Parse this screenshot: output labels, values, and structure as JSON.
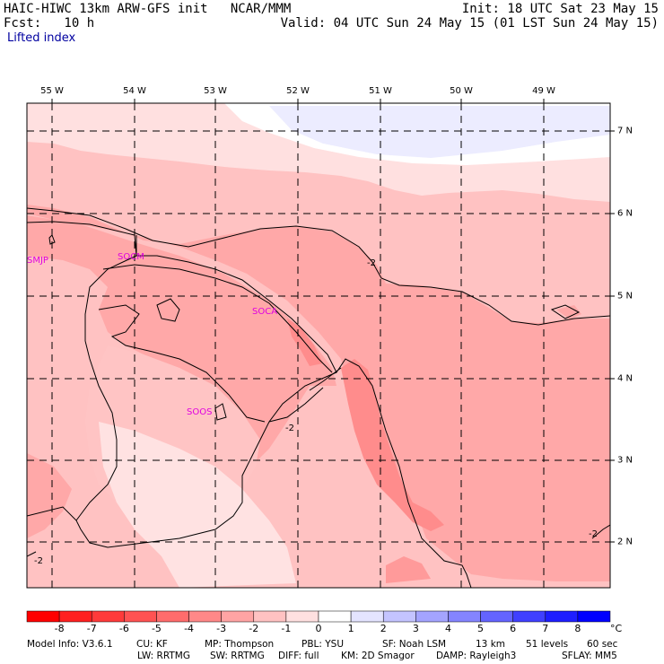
{
  "header": {
    "model_line": "HAIC-HIWC 13km ARW-GFS init   NCAR/MMM",
    "fcst_line": "Fcst:   10 h",
    "init_line": "Init: 18 UTC Sat 23 May 15",
    "valid_line": "Valid: 04 UTC Sun 24 May 15 (01 LST Sun 24 May 15)",
    "field": "Lifted index"
  },
  "map": {
    "lon_labels": [
      "55 W",
      "54 W",
      "53 W",
      "52 W",
      "51 W",
      "50 W",
      "49 W"
    ],
    "lat_labels": [
      "7 N",
      "6 N",
      "5 N",
      "4 N",
      "3 N",
      "2 N"
    ],
    "stations": [
      "SMJP",
      "SOCM",
      "SOCA",
      "SOOS"
    ],
    "contour_labels": [
      "-2",
      "-2",
      "-2",
      "-2"
    ]
  },
  "colorbar": {
    "levels": [
      "-8",
      "-7",
      "-6",
      "-5",
      "-4",
      "-3",
      "-2",
      "-1",
      "0",
      "1",
      "2",
      "3",
      "4",
      "5",
      "6",
      "7",
      "8"
    ],
    "unit": "°C",
    "colors": [
      "#ff0000",
      "#ff2020",
      "#ff3a3a",
      "#ff5252",
      "#ff6c6c",
      "#ff8888",
      "#ffa4a4",
      "#ffc2c2",
      "#ffe0e0",
      "#ffffff",
      "#e4e4ff",
      "#c4c4ff",
      "#a4a4ff",
      "#8484ff",
      "#6464ff",
      "#4040ff",
      "#1e1eff",
      "#0000ff"
    ]
  },
  "footer": {
    "line1": [
      "Model Info: V3.6.1",
      "CU: KF",
      "MP: Thompson",
      "PBL: YSU",
      "SF: Noah LSM",
      "13 km",
      "51 levels",
      "60 sec"
    ],
    "line2": [
      "LW: RRTMG",
      "SW: RRTMG",
      "DIFF: full",
      "KM: 2D Smagor",
      "DAMP: Rayleigh3",
      "SFLAY: MM5"
    ]
  }
}
